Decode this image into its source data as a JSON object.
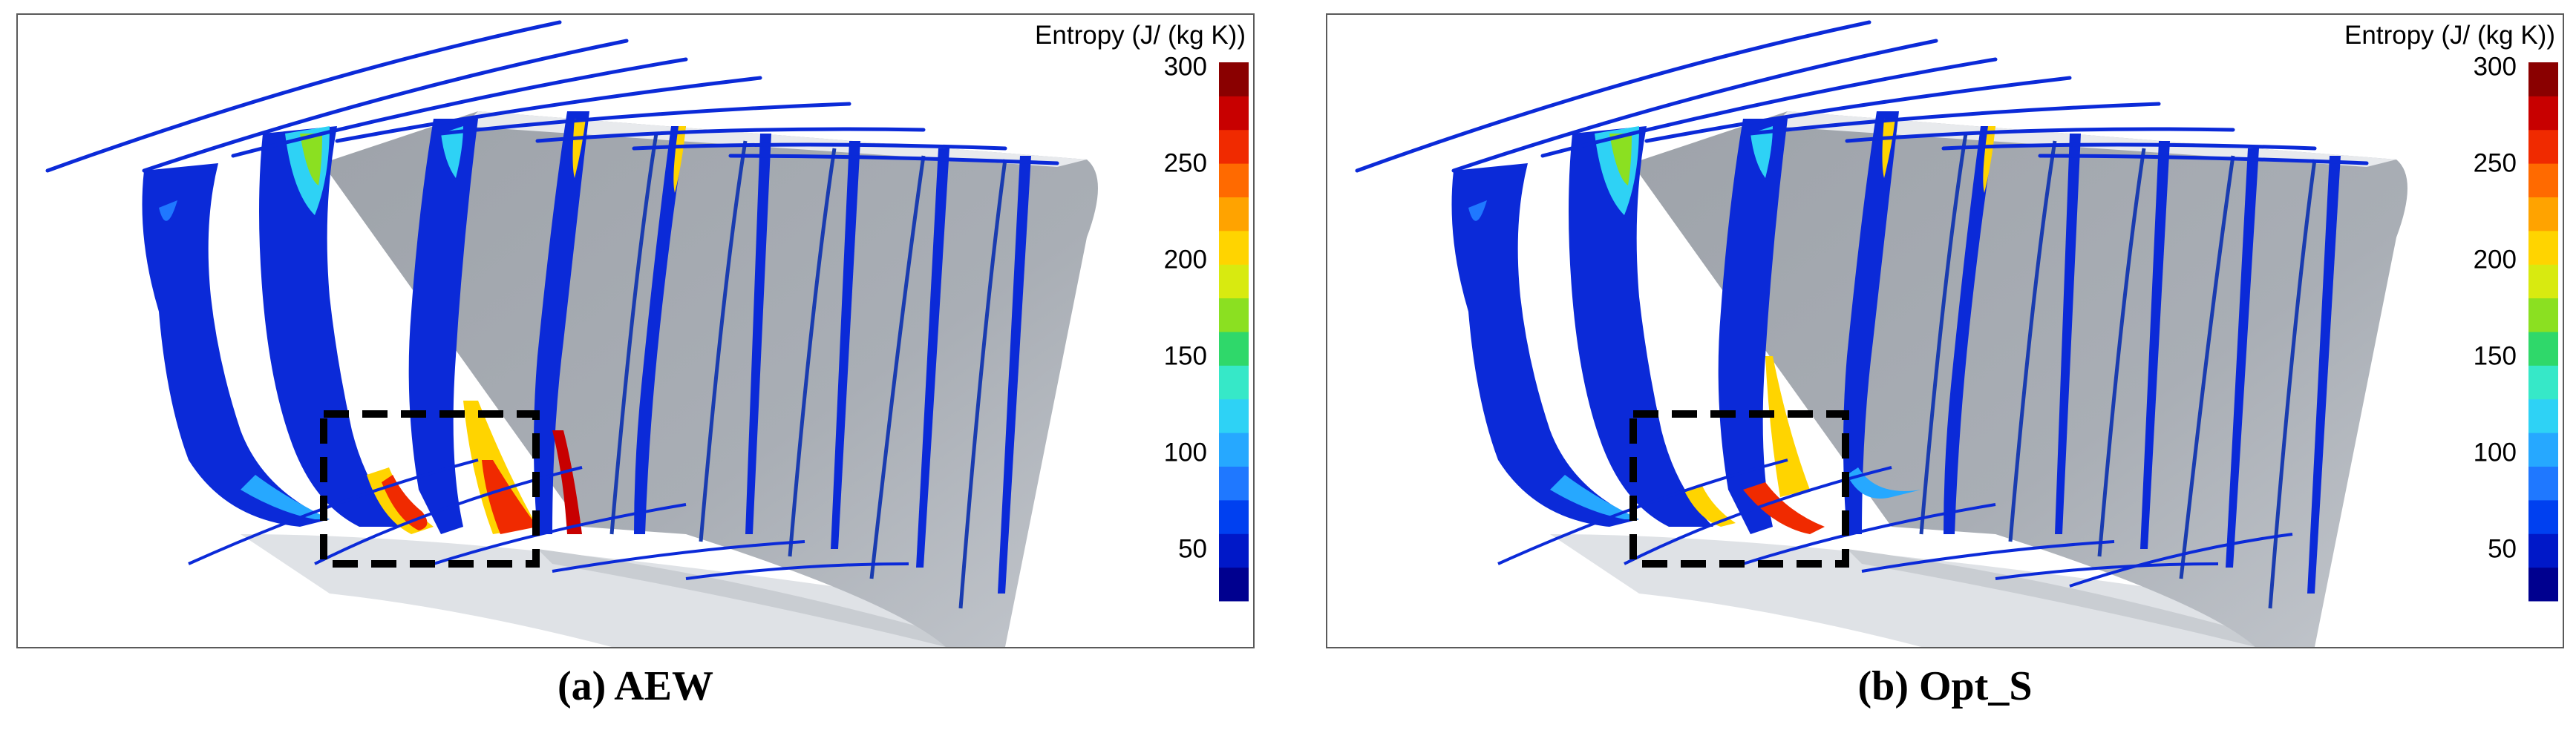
{
  "panels": [
    {
      "caption": "(a) AEW",
      "colorbar": {
        "title": "Entropy (J/ (kg K))",
        "ticks": [
          "300",
          "250",
          "200",
          "150",
          "100",
          "50"
        ]
      }
    },
    {
      "caption": "(b) Opt_S",
      "colorbar": {
        "title": "Entropy (J/ (kg K))",
        "ticks": [
          "300",
          "250",
          "200",
          "150",
          "100",
          "50"
        ]
      }
    }
  ],
  "colormap": [
    "#00008f",
    "#0018c8",
    "#0040f0",
    "#1f78ff",
    "#26a8ff",
    "#2ed2f5",
    "#36e8c8",
    "#2fd86a",
    "#8be021",
    "#d8ea10",
    "#ffd400",
    "#ffa300",
    "#ff6a00",
    "#f02a00",
    "#c80000",
    "#8a0000"
  ],
  "colorbar_range": [
    20,
    300
  ]
}
